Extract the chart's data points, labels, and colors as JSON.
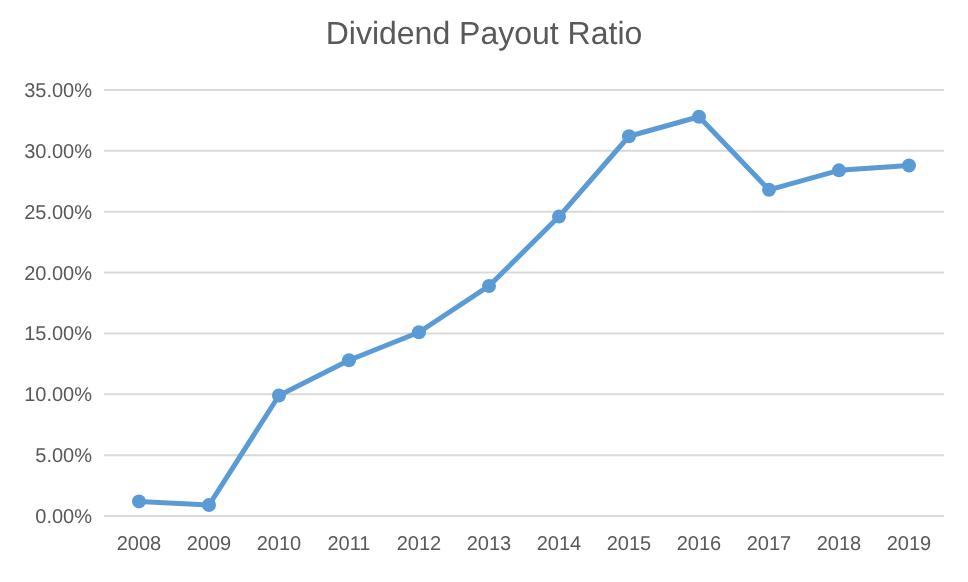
{
  "chart_data": {
    "type": "line",
    "title": "Dividend Payout Ratio",
    "categories": [
      "2008",
      "2009",
      "2010",
      "2011",
      "2012",
      "2013",
      "2014",
      "2015",
      "2016",
      "2017",
      "2018",
      "2019"
    ],
    "series": [
      {
        "color": "#5b9bd5",
        "values": [
          1.2,
          0.9,
          9.9,
          12.8,
          15.1,
          18.9,
          24.6,
          31.2,
          32.8,
          26.8,
          28.4,
          28.8
        ]
      }
    ],
    "ylim": [
      0,
      35
    ],
    "yticks": [
      {
        "value": 0,
        "label": "0.00%"
      },
      {
        "value": 5,
        "label": "5.00%"
      },
      {
        "value": 10,
        "label": "10.00%"
      },
      {
        "value": 15,
        "label": "15.00%"
      },
      {
        "value": 20,
        "label": "20.00%"
      },
      {
        "value": 25,
        "label": "25.00%"
      },
      {
        "value": 30,
        "label": "30.00%"
      },
      {
        "value": 35,
        "label": "35.00%"
      }
    ],
    "grid": "y",
    "marker": "circle",
    "line_style": "solid"
  }
}
